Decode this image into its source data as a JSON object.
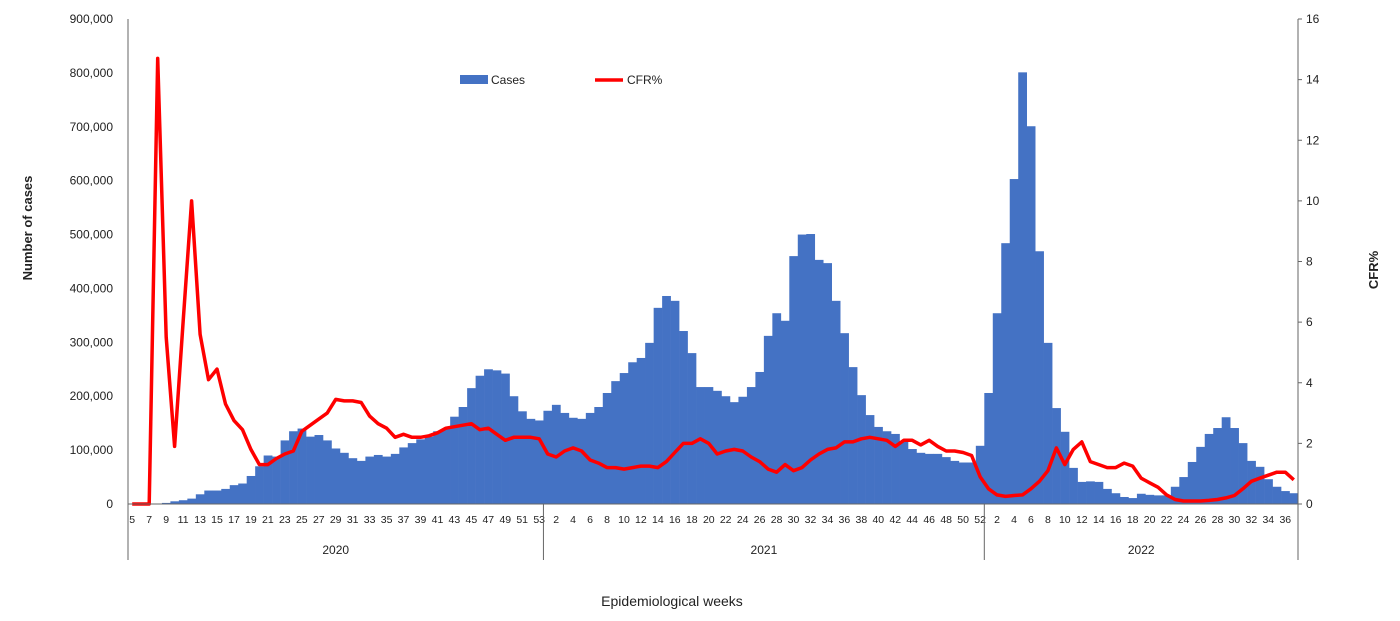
{
  "chart_data": {
    "type": "bar+line",
    "xlabel": "Epidemiological weeks",
    "ylabel": "Number of cases",
    "y2label": "CFR%",
    "ylim": [
      0,
      900000
    ],
    "y2lim": [
      0,
      16
    ],
    "yticks": [
      "0",
      "100,000",
      "200,000",
      "300,000",
      "400,000",
      "500,000",
      "600,000",
      "700,000",
      "800,000",
      "900,000"
    ],
    "y2ticks": [
      "0",
      "2",
      "4",
      "6",
      "8",
      "10",
      "12",
      "14",
      "16"
    ],
    "legend": {
      "placement": "top-center",
      "cases": "Cases",
      "cfr": "CFR%"
    },
    "colors": {
      "cases": "#4472C4",
      "cfr": "#FF0000"
    },
    "years": [
      {
        "year": "2020",
        "weeks": [
          5,
          6,
          7,
          8,
          9,
          10,
          11,
          12,
          13,
          14,
          15,
          16,
          17,
          18,
          19,
          20,
          21,
          22,
          23,
          24,
          25,
          26,
          27,
          28,
          29,
          30,
          31,
          32,
          33,
          34,
          35,
          36,
          37,
          38,
          39,
          40,
          41,
          42,
          43,
          44,
          45,
          46,
          47,
          48,
          49,
          50,
          51,
          52,
          53
        ],
        "label_parity": 1,
        "cases": [
          0,
          0,
          0,
          0,
          2000,
          5000,
          7000,
          10000,
          18000,
          25000,
          25000,
          28000,
          35000,
          38000,
          52000,
          70000,
          90000,
          88000,
          118000,
          135000,
          140000,
          125000,
          128000,
          118000,
          103000,
          95000,
          85000,
          80000,
          88000,
          91000,
          88000,
          93000,
          105000,
          113000,
          120000,
          125000,
          135000,
          140000,
          162000,
          180000,
          215000,
          238000,
          250000,
          248000,
          242000,
          200000,
          172000,
          158000,
          155000
        ],
        "cfr": [
          0,
          0,
          0,
          14.7,
          5.5,
          1.9,
          6,
          10,
          5.6,
          4.1,
          4.45,
          3.3,
          2.75,
          2.45,
          1.8,
          1.3,
          1.3,
          1.5,
          1.65,
          1.75,
          2.4,
          2.6,
          2.8,
          3.0,
          3.45,
          3.4,
          3.4,
          3.35,
          2.9,
          2.65,
          2.5,
          2.2,
          2.3,
          2.2,
          2.2,
          2.25,
          2.35,
          2.5,
          2.55,
          2.6,
          2.65,
          2.45,
          2.5,
          2.3,
          2.1,
          2.2,
          2.2,
          2.2,
          2.15
        ]
      },
      {
        "year": "2021",
        "weeks": [
          1,
          2,
          3,
          4,
          5,
          6,
          7,
          8,
          9,
          10,
          11,
          12,
          13,
          14,
          15,
          16,
          17,
          18,
          19,
          20,
          21,
          22,
          23,
          24,
          25,
          26,
          27,
          28,
          29,
          30,
          31,
          32,
          33,
          34,
          35,
          36,
          37,
          38,
          39,
          40,
          41,
          42,
          43,
          44,
          45,
          46,
          47,
          48,
          49,
          50,
          51,
          52
        ],
        "label_parity": 0,
        "cases": [
          173000,
          184000,
          169000,
          160000,
          158000,
          169000,
          180000,
          206000,
          228000,
          243000,
          263000,
          271000,
          299000,
          364000,
          386000,
          377000,
          321000,
          280000,
          217000,
          217000,
          210000,
          200000,
          189000,
          199000,
          217000,
          245000,
          312000,
          354000,
          340000,
          460000,
          500000,
          501000,
          453000,
          447000,
          377000,
          317000,
          254000,
          202000,
          165000,
          143000,
          135000,
          130000,
          117000,
          102000,
          95000,
          93000,
          93000,
          87000,
          80000,
          77000,
          77000,
          108000
        ],
        "cfr": [
          1.65,
          1.55,
          1.75,
          1.85,
          1.75,
          1.45,
          1.35,
          1.2,
          1.2,
          1.15,
          1.2,
          1.25,
          1.25,
          1.2,
          1.4,
          1.7,
          2.0,
          2.0,
          2.15,
          2.0,
          1.65,
          1.75,
          1.8,
          1.75,
          1.55,
          1.4,
          1.15,
          1.05,
          1.3,
          1.1,
          1.2,
          1.45,
          1.65,
          1.8,
          1.85,
          2.05,
          2.05,
          2.15,
          2.2,
          2.15,
          2.1,
          1.9,
          2.1,
          2.1,
          1.95,
          2.1,
          1.9,
          1.75,
          1.75,
          1.7,
          1.6,
          0.9
        ]
      },
      {
        "year": "2022",
        "weeks": [
          1,
          2,
          3,
          4,
          5,
          6,
          7,
          8,
          9,
          10,
          11,
          12,
          13,
          14,
          15,
          16,
          17,
          18,
          19,
          20,
          21,
          22,
          23,
          24,
          25,
          26,
          27,
          28,
          29,
          30,
          31,
          32,
          33,
          34,
          35,
          36,
          37
        ],
        "label_parity": 0,
        "cases": [
          206000,
          354000,
          484000,
          603000,
          801000,
          701000,
          469000,
          299000,
          178000,
          134000,
          67000,
          41000,
          42000,
          41000,
          28000,
          20000,
          13000,
          11000,
          19000,
          17000,
          16000,
          16000,
          32000,
          50000,
          78000,
          106000,
          130000,
          141000,
          161000,
          141000,
          113000,
          80000,
          69000,
          46000,
          32000,
          24000,
          20000
        ],
        "cfr": [
          0.5,
          0.3,
          0.25,
          0.28,
          0.3,
          0.5,
          0.75,
          1.1,
          1.85,
          1.3,
          1.8,
          2.05,
          1.4,
          1.3,
          1.2,
          1.2,
          1.35,
          1.25,
          0.85,
          0.7,
          0.55,
          0.3,
          0.15,
          0.1,
          0.1,
          0.1,
          0.12,
          0.15,
          0.2,
          0.28,
          0.5,
          0.75,
          0.85,
          0.95,
          1.05,
          1.05,
          0.8
        ]
      }
    ]
  }
}
